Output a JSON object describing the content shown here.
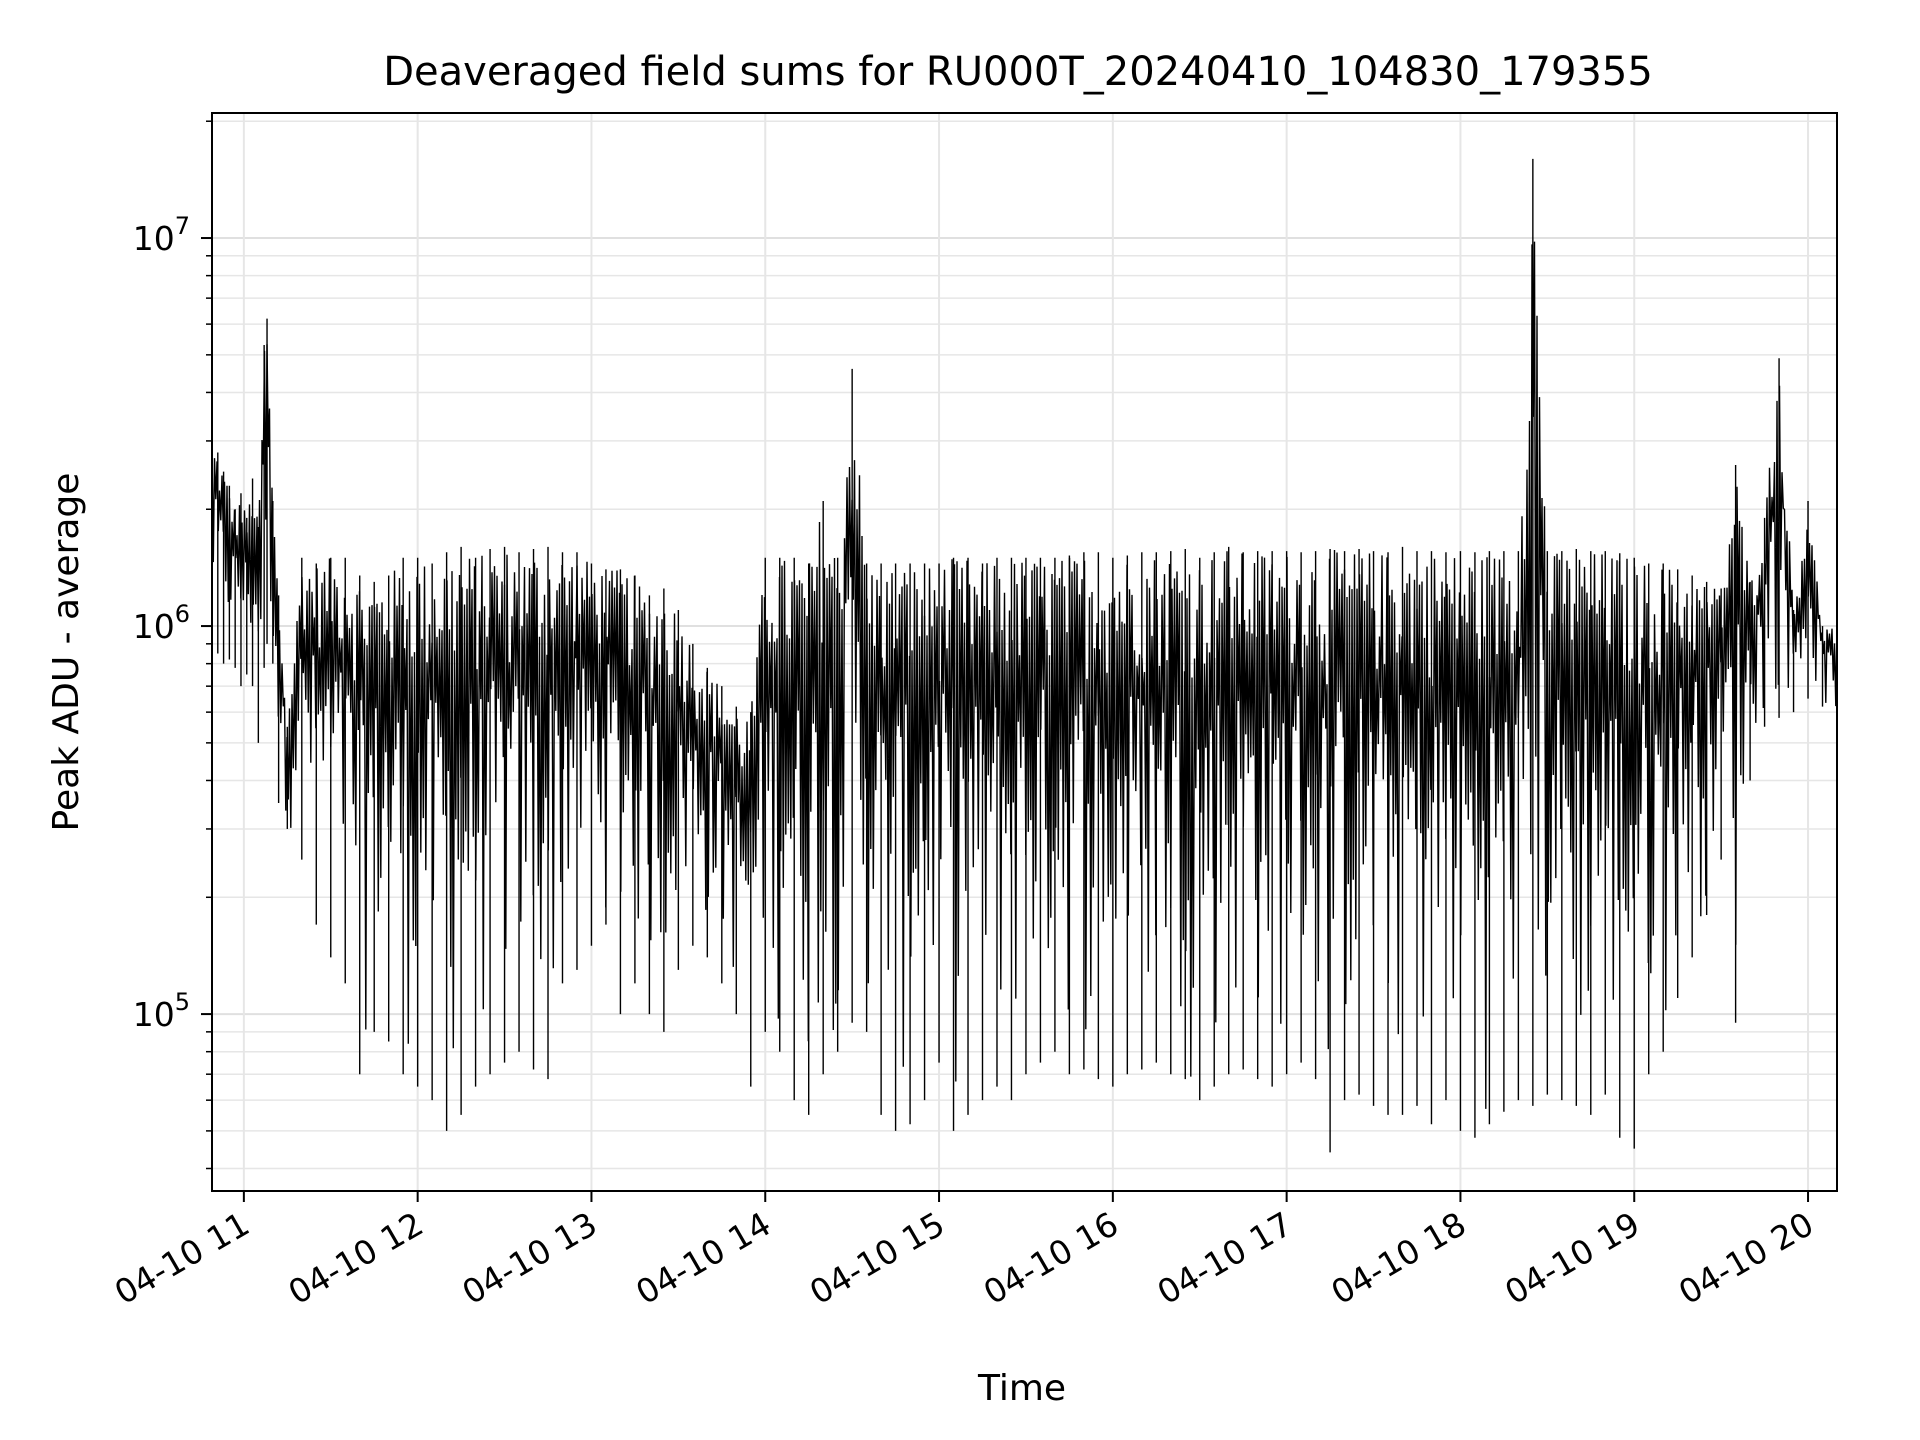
{
  "chart_data": {
    "type": "line",
    "title": "Deaveraged field sums for RU000T_20240410_104830_179355",
    "xlabel": "Time",
    "ylabel": "Peak ADU - average",
    "y_scale": "log",
    "grid": true,
    "line_color": "#000000",
    "xlim": [
      "2024-04-10 10:49",
      "2024-04-10 20:10"
    ],
    "ylim": [
      35000,
      21000000
    ],
    "x_ticks": [
      {
        "value": "2024-04-10 11:00",
        "label": "04-10 11"
      },
      {
        "value": "2024-04-10 12:00",
        "label": "04-10 12"
      },
      {
        "value": "2024-04-10 13:00",
        "label": "04-10 13"
      },
      {
        "value": "2024-04-10 14:00",
        "label": "04-10 14"
      },
      {
        "value": "2024-04-10 15:00",
        "label": "04-10 15"
      },
      {
        "value": "2024-04-10 16:00",
        "label": "04-10 16"
      },
      {
        "value": "2024-04-10 17:00",
        "label": "04-10 17"
      },
      {
        "value": "2024-04-10 18:00",
        "label": "04-10 18"
      },
      {
        "value": "2024-04-10 19:00",
        "label": "04-10 19"
      },
      {
        "value": "2024-04-10 20:00",
        "label": "04-10 20"
      }
    ],
    "y_ticks": [
      {
        "value": 100000,
        "base": "10",
        "exp": "5"
      },
      {
        "value": 1000000,
        "base": "10",
        "exp": "6"
      },
      {
        "value": 10000000,
        "base": "10",
        "exp": "7"
      }
    ],
    "series": [
      {
        "x": [
          "2024-04-10 10:49",
          "2024-04-10 10:51",
          "2024-04-10 10:53",
          "2024-04-10 10:55",
          "2024-04-10 10:57",
          "2024-04-10 10:59",
          "2024-04-10 11:01",
          "2024-04-10 11:03",
          "2024-04-10 11:05",
          "2024-04-10 11:07",
          "2024-04-10 11:08",
          "2024-04-10 11:10",
          "2024-04-10 11:12",
          "2024-04-10 11:15",
          "2024-04-10 11:20",
          "2024-04-10 11:25",
          "2024-04-10 11:30",
          "2024-04-10 11:35",
          "2024-04-10 11:40",
          "2024-04-10 11:45",
          "2024-04-10 11:50",
          "2024-04-10 11:55",
          "2024-04-10 12:00",
          "2024-04-10 12:05",
          "2024-04-10 12:10",
          "2024-04-10 12:15",
          "2024-04-10 12:20",
          "2024-04-10 12:25",
          "2024-04-10 12:30",
          "2024-04-10 12:35",
          "2024-04-10 12:40",
          "2024-04-10 12:45",
          "2024-04-10 12:50",
          "2024-04-10 12:55",
          "2024-04-10 13:00",
          "2024-04-10 13:05",
          "2024-04-10 13:10",
          "2024-04-10 13:15",
          "2024-04-10 13:20",
          "2024-04-10 13:25",
          "2024-04-10 13:30",
          "2024-04-10 13:35",
          "2024-04-10 13:40",
          "2024-04-10 13:45",
          "2024-04-10 13:50",
          "2024-04-10 13:55",
          "2024-04-10 14:00",
          "2024-04-10 14:05",
          "2024-04-10 14:10",
          "2024-04-10 14:15",
          "2024-04-10 14:20",
          "2024-04-10 14:25",
          "2024-04-10 14:30",
          "2024-04-10 14:35",
          "2024-04-10 14:40",
          "2024-04-10 14:45",
          "2024-04-10 14:50",
          "2024-04-10 14:55",
          "2024-04-10 15:00",
          "2024-04-10 15:05",
          "2024-04-10 15:10",
          "2024-04-10 15:15",
          "2024-04-10 15:20",
          "2024-04-10 15:25",
          "2024-04-10 15:30",
          "2024-04-10 15:35",
          "2024-04-10 15:40",
          "2024-04-10 15:45",
          "2024-04-10 15:50",
          "2024-04-10 15:55",
          "2024-04-10 16:00",
          "2024-04-10 16:05",
          "2024-04-10 16:10",
          "2024-04-10 16:15",
          "2024-04-10 16:20",
          "2024-04-10 16:25",
          "2024-04-10 16:30",
          "2024-04-10 16:35",
          "2024-04-10 16:40",
          "2024-04-10 16:45",
          "2024-04-10 16:50",
          "2024-04-10 16:55",
          "2024-04-10 17:00",
          "2024-04-10 17:05",
          "2024-04-10 17:10",
          "2024-04-10 17:15",
          "2024-04-10 17:20",
          "2024-04-10 17:25",
          "2024-04-10 17:30",
          "2024-04-10 17:35",
          "2024-04-10 17:40",
          "2024-04-10 17:45",
          "2024-04-10 17:50",
          "2024-04-10 17:55",
          "2024-04-10 18:00",
          "2024-04-10 18:05",
          "2024-04-10 18:10",
          "2024-04-10 18:15",
          "2024-04-10 18:20",
          "2024-04-10 18:25",
          "2024-04-10 18:30",
          "2024-04-10 18:35",
          "2024-04-10 18:40",
          "2024-04-10 18:45",
          "2024-04-10 18:50",
          "2024-04-10 18:55",
          "2024-04-10 19:00",
          "2024-04-10 19:05",
          "2024-04-10 19:10",
          "2024-04-10 19:15",
          "2024-04-10 19:20",
          "2024-04-10 19:25",
          "2024-04-10 19:30",
          "2024-04-10 19:35",
          "2024-04-10 19:40",
          "2024-04-10 19:45",
          "2024-04-10 19:50",
          "2024-04-10 19:55",
          "2024-04-10 20:00",
          "2024-04-10 20:05",
          "2024-04-10 20:10"
        ],
        "y_high": [
          3000000,
          2800000,
          2500000,
          2300000,
          2000000,
          2200000,
          1900000,
          2400000,
          1800000,
          5300000,
          6200000,
          2100000,
          1200000,
          550000,
          1500000,
          1450000,
          1500000,
          1500000,
          1350000,
          1300000,
          1350000,
          1500000,
          1500000,
          1450000,
          1550000,
          1600000,
          1500000,
          1580000,
          1600000,
          1550000,
          1580000,
          1600000,
          1550000,
          1550000,
          1450000,
          1400000,
          1400000,
          1350000,
          1200000,
          1250000,
          1100000,
          900000,
          780000,
          700000,
          620000,
          600000,
          1500000,
          1500000,
          1500000,
          1450000,
          2100000,
          1500000,
          4600000,
          1450000,
          1450000,
          1450000,
          1450000,
          1450000,
          1450000,
          1500000,
          1500000,
          1450000,
          1500000,
          1500000,
          1500000,
          1500000,
          1500000,
          1520000,
          1550000,
          1550000,
          1500000,
          1520000,
          1550000,
          1550000,
          1560000,
          1580000,
          1500000,
          1550000,
          1600000,
          1550000,
          1560000,
          1560000,
          1560000,
          1550000,
          1560000,
          1580000,
          1560000,
          1580000,
          1560000,
          1550000,
          1600000,
          1560000,
          1560000,
          1550000,
          1560000,
          1550000,
          1560000,
          1560000,
          1560000,
          16000000,
          1560000,
          1560000,
          1580000,
          1560000,
          1560000,
          1540000,
          1500000,
          1450000,
          1450000,
          1400000,
          1350000,
          1300000,
          1250000,
          2600000,
          1300000,
          1900000,
          4900000,
          1100000,
          2100000,
          1000000,
          1000000
        ],
        "y_low": [
          900000,
          850000,
          800000,
          820000,
          780000,
          700000,
          750000,
          700000,
          500000,
          780000,
          900000,
          800000,
          350000,
          300000,
          250000,
          170000,
          140000,
          120000,
          70000,
          90000,
          85000,
          70000,
          65000,
          60000,
          50000,
          55000,
          65000,
          70000,
          75000,
          80000,
          72000,
          68000,
          120000,
          130000,
          150000,
          170000,
          100000,
          120000,
          100000,
          90000,
          130000,
          150000,
          140000,
          120000,
          100000,
          65000,
          90000,
          80000,
          60000,
          55000,
          70000,
          80000,
          95000,
          90000,
          55000,
          50000,
          52000,
          60000,
          75000,
          50000,
          55000,
          60000,
          65000,
          60000,
          70000,
          75000,
          80000,
          70000,
          72000,
          68000,
          65000,
          70000,
          72000,
          75000,
          70000,
          68000,
          60000,
          65000,
          70000,
          72000,
          68000,
          65000,
          70000,
          75000,
          68000,
          44000,
          60000,
          62000,
          58000,
          55000,
          55000,
          58000,
          52000,
          60000,
          50000,
          48000,
          52000,
          56000,
          60000,
          58000,
          62000,
          60000,
          58000,
          55000,
          62000,
          48000,
          45000,
          70000,
          80000,
          110000,
          140000,
          180000,
          250000,
          95000,
          400000,
          550000,
          580000,
          600000,
          650000,
          620000,
          500000
        ]
      }
    ]
  }
}
